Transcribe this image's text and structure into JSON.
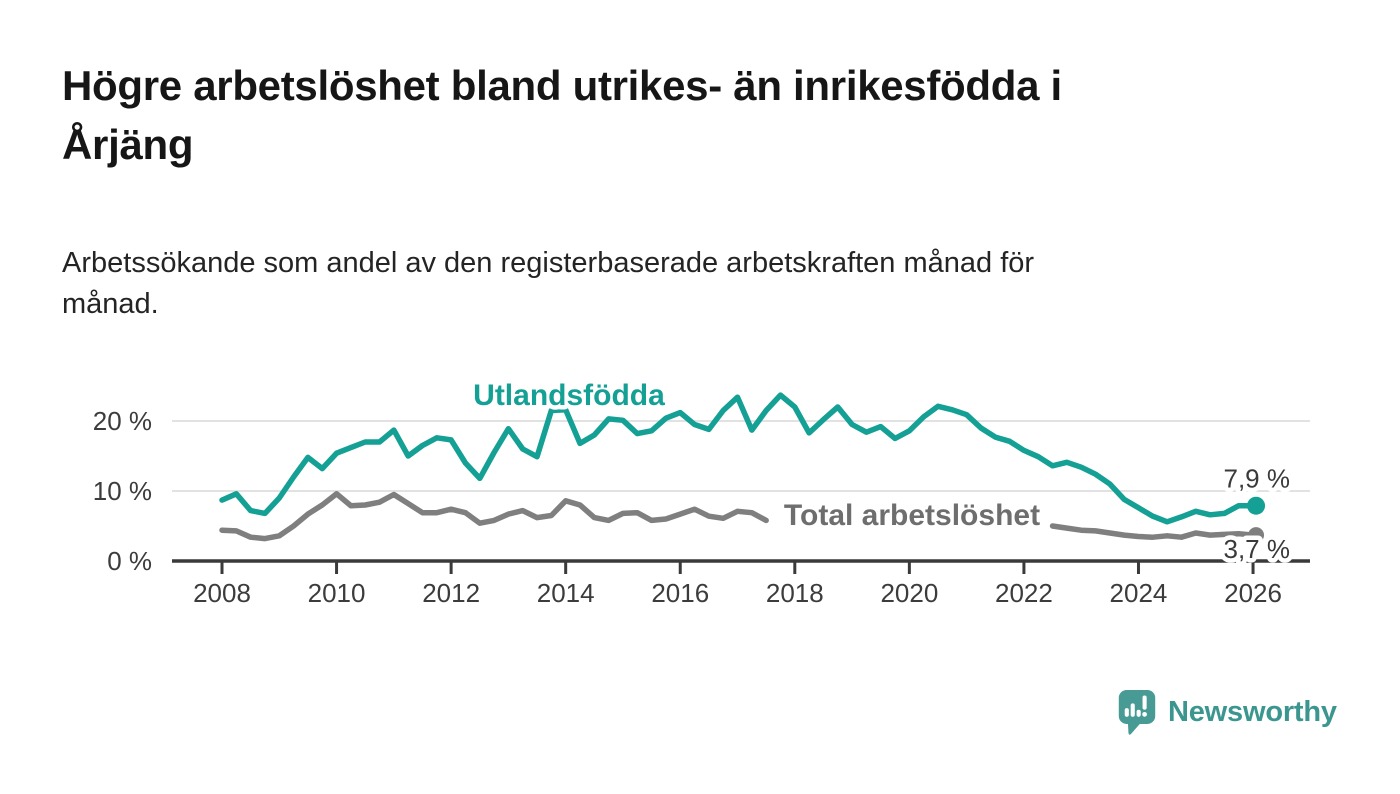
{
  "header": {
    "title": "Högre arbetslöshet bland utrikes- än inrikesfödda i Årjäng",
    "title_lines": [
      "Högre arbetslöshet bland utrikes- än inrikesfödda i",
      "Årjäng"
    ],
    "subtitle": "Arbetssökande som andel av den registerbaserade arbetskraften månad för månad.",
    "subtitle_lines": [
      "Arbetssökande som andel av den registerbaserade arbetskraften månad för",
      "månad."
    ]
  },
  "logo": {
    "text": "Newsworthy",
    "icon": "newsworthy-speech-bubble-bar-chart-icon",
    "icon_color": "#479b94",
    "text_color": "#3b968f"
  },
  "colors": {
    "background": "#ffffff",
    "title": "#161616",
    "subtitle": "#242424",
    "grid": "#d9d9d9",
    "axis": "#3a3a3a",
    "tick_label": "#3c3c3c",
    "end_label": "#3a3a3a"
  },
  "chart_data": {
    "type": "line",
    "title": "",
    "xlabel": "",
    "ylabel": "",
    "time_resolution": "monthly (values estimated quarterly from chart)",
    "grid": "horizontal",
    "legend_position": "labels on lines",
    "x_axis": {
      "range": [
        2007.1,
        2027.0
      ],
      "ticks": [
        2008,
        2010,
        2012,
        2014,
        2016,
        2018,
        2020,
        2022,
        2024,
        2026
      ]
    },
    "y_axis": {
      "range": [
        0,
        25
      ],
      "gridlines": [
        10,
        20
      ],
      "ticks": [
        {
          "value": 0,
          "label": "0 %"
        },
        {
          "value": 10,
          "label": "10 %"
        },
        {
          "value": 20,
          "label": "20 %"
        }
      ]
    },
    "series": [
      {
        "id": "utlandsfodda",
        "name": "Utlandsfödda",
        "color": "#14a094",
        "end_label": "7,9 %",
        "end_value": 7.9,
        "segments": [
          [
            [
              2008.0,
              8.7
            ],
            [
              2008.25,
              9.6
            ],
            [
              2008.5,
              7.2
            ],
            [
              2008.75,
              6.8
            ],
            [
              2009.0,
              9.0
            ],
            [
              2009.25,
              12.0
            ],
            [
              2009.5,
              14.8
            ],
            [
              2009.75,
              13.2
            ],
            [
              2010.0,
              15.4
            ],
            [
              2010.25,
              16.2
            ],
            [
              2010.5,
              17.0
            ],
            [
              2010.75,
              17.0
            ],
            [
              2011.0,
              18.7
            ],
            [
              2011.25,
              15.0
            ],
            [
              2011.5,
              16.5
            ],
            [
              2011.75,
              17.6
            ],
            [
              2012.0,
              17.3
            ],
            [
              2012.25,
              14.0
            ],
            [
              2012.5,
              11.8
            ],
            [
              2012.75,
              15.5
            ],
            [
              2013.0,
              18.9
            ],
            [
              2013.25,
              16.0
            ],
            [
              2013.5,
              14.9
            ],
            [
              2013.75,
              21.5
            ],
            [
              2014.0,
              21.6
            ],
            [
              2014.25,
              16.8
            ],
            [
              2014.5,
              18.0
            ],
            [
              2014.75,
              20.3
            ],
            [
              2015.0,
              20.1
            ],
            [
              2015.25,
              18.2
            ],
            [
              2015.5,
              18.6
            ],
            [
              2015.75,
              20.4
            ],
            [
              2016.0,
              21.2
            ],
            [
              2016.25,
              19.5
            ],
            [
              2016.5,
              18.8
            ],
            [
              2016.75,
              21.5
            ],
            [
              2017.0,
              23.4
            ],
            [
              2017.25,
              18.7
            ],
            [
              2017.5,
              21.5
            ],
            [
              2017.75,
              23.7
            ],
            [
              2018.0,
              22.0
            ],
            [
              2018.25,
              18.3
            ],
            [
              2018.5,
              20.2
            ],
            [
              2018.75,
              22.0
            ],
            [
              2019.0,
              19.5
            ],
            [
              2019.25,
              18.4
            ],
            [
              2019.5,
              19.2
            ],
            [
              2019.75,
              17.5
            ],
            [
              2020.0,
              18.6
            ],
            [
              2020.25,
              20.6
            ],
            [
              2020.5,
              22.1
            ],
            [
              2020.75,
              21.6
            ],
            [
              2021.0,
              20.9
            ],
            [
              2021.25,
              19.0
            ],
            [
              2021.5,
              17.7
            ],
            [
              2021.75,
              17.1
            ],
            [
              2022.0,
              15.8
            ],
            [
              2022.25,
              14.9
            ],
            [
              2022.5,
              13.6
            ],
            [
              2022.75,
              14.1
            ],
            [
              2023.0,
              13.4
            ],
            [
              2023.25,
              12.4
            ],
            [
              2023.5,
              11.0
            ],
            [
              2023.75,
              8.8
            ],
            [
              2024.0,
              7.6
            ],
            [
              2024.25,
              6.4
            ],
            [
              2024.5,
              5.6
            ],
            [
              2024.75,
              6.3
            ],
            [
              2025.0,
              7.1
            ],
            [
              2025.25,
              6.6
            ],
            [
              2025.5,
              6.8
            ],
            [
              2025.75,
              7.9
            ],
            [
              2026.0,
              7.9
            ]
          ]
        ]
      },
      {
        "id": "total-arbetsloshet",
        "name": "Total arbetslöshet",
        "color": "#7f7f7f",
        "label_color": "#6e6e6e",
        "end_label": "3,7 %",
        "end_value": 3.7,
        "segments": [
          [
            [
              2008.0,
              4.4
            ],
            [
              2008.25,
              4.3
            ],
            [
              2008.5,
              3.4
            ],
            [
              2008.75,
              3.2
            ],
            [
              2009.0,
              3.6
            ],
            [
              2009.25,
              5.0
            ],
            [
              2009.5,
              6.7
            ],
            [
              2009.75,
              8.0
            ],
            [
              2010.0,
              9.6
            ],
            [
              2010.25,
              7.9
            ],
            [
              2010.5,
              8.0
            ],
            [
              2010.75,
              8.4
            ],
            [
              2011.0,
              9.5
            ],
            [
              2011.25,
              8.2
            ],
            [
              2011.5,
              6.9
            ],
            [
              2011.75,
              6.9
            ],
            [
              2012.0,
              7.4
            ],
            [
              2012.25,
              6.9
            ],
            [
              2012.5,
              5.4
            ],
            [
              2012.75,
              5.8
            ],
            [
              2013.0,
              6.7
            ],
            [
              2013.25,
              7.2
            ],
            [
              2013.5,
              6.2
            ],
            [
              2013.75,
              6.5
            ],
            [
              2014.0,
              8.6
            ],
            [
              2014.25,
              8.0
            ],
            [
              2014.5,
              6.2
            ],
            [
              2014.75,
              5.8
            ],
            [
              2015.0,
              6.8
            ],
            [
              2015.25,
              6.9
            ],
            [
              2015.5,
              5.8
            ],
            [
              2015.75,
              6.0
            ],
            [
              2016.0,
              6.7
            ],
            [
              2016.25,
              7.4
            ],
            [
              2016.5,
              6.4
            ],
            [
              2016.75,
              6.1
            ],
            [
              2017.0,
              7.1
            ],
            [
              2017.25,
              6.9
            ],
            [
              2017.5,
              5.8
            ]
          ],
          [
            [
              2022.5,
              5.0
            ],
            [
              2022.75,
              4.7
            ],
            [
              2023.0,
              4.4
            ],
            [
              2023.25,
              4.3
            ],
            [
              2023.5,
              4.0
            ],
            [
              2023.75,
              3.7
            ],
            [
              2024.0,
              3.5
            ],
            [
              2024.25,
              3.4
            ],
            [
              2024.5,
              3.6
            ],
            [
              2024.75,
              3.4
            ],
            [
              2025.0,
              4.0
            ],
            [
              2025.25,
              3.7
            ],
            [
              2025.5,
              3.8
            ],
            [
              2025.75,
              3.9
            ],
            [
              2026.0,
              3.7
            ]
          ]
        ]
      }
    ]
  }
}
